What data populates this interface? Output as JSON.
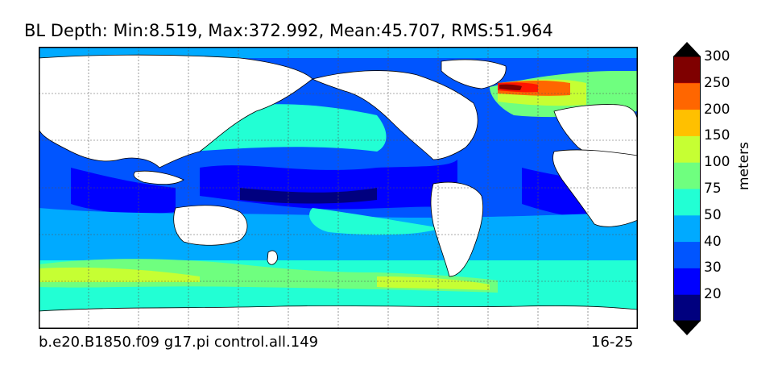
{
  "title": "BL Depth: Min:8.519, Max:372.992, Mean:45.707, RMS:51.964",
  "footer": {
    "case": "b.e20.B1850.f09 g17.pi control.all.149",
    "years": "16-25"
  },
  "colorbar": {
    "label": "meters",
    "levels": [
      "20",
      "30",
      "40",
      "50",
      "75",
      "100",
      "150",
      "200",
      "250",
      "300"
    ],
    "colors": [
      "#00007f",
      "#0000ff",
      "#0055ff",
      "#00aaff",
      "#22ffd4",
      "#6fff7f",
      "#c6ff33",
      "#ffc000",
      "#ff6600",
      "#ff1500",
      "#7f0000"
    ]
  },
  "palette": {
    "land": "#ffffff",
    "coast": "#000000"
  }
}
